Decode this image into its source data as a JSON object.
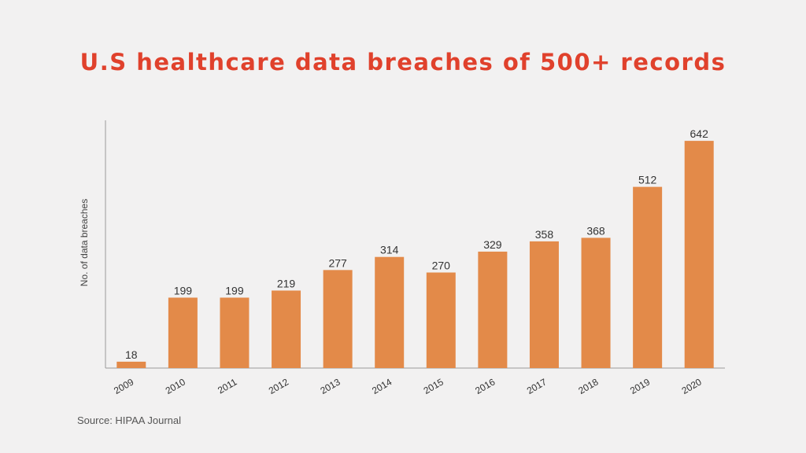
{
  "chart_data": {
    "type": "bar",
    "title": "U.S healthcare data breaches of 500+ records",
    "xlabel": "",
    "ylabel": "No. of data breaches",
    "categories": [
      "2009",
      "2010",
      "2011",
      "2012",
      "2013",
      "2014",
      "2015",
      "2016",
      "2017",
      "2018",
      "2019",
      "2020"
    ],
    "values": [
      18,
      199,
      199,
      219,
      277,
      314,
      270,
      329,
      358,
      368,
      512,
      642
    ],
    "ylim": [
      0,
      700
    ],
    "grid": false,
    "legend": "none",
    "colors": {
      "bar": "#e38a49",
      "title": "#e0412c",
      "axis": "#999999",
      "background": "#f2f1f1"
    }
  },
  "source": "Source: HIPAA Journal"
}
